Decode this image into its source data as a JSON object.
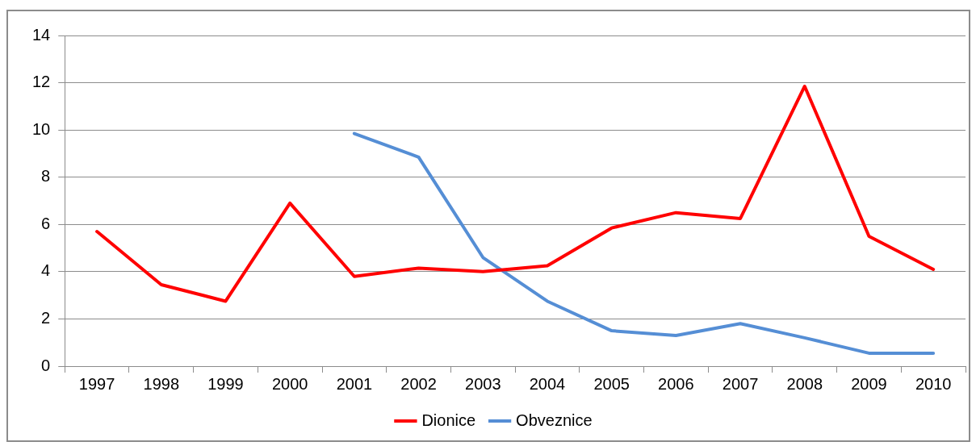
{
  "chart_data": {
    "type": "line",
    "categories": [
      "1997",
      "1998",
      "1999",
      "2000",
      "2001",
      "2002",
      "2003",
      "2004",
      "2005",
      "2006",
      "2007",
      "2008",
      "2009",
      "2010"
    ],
    "series": [
      {
        "name": "Dionice",
        "color": "#ff0000",
        "values": [
          5.7,
          3.45,
          2.75,
          6.9,
          3.8,
          4.15,
          4.0,
          4.25,
          5.85,
          6.5,
          6.25,
          11.85,
          5.5,
          4.1
        ]
      },
      {
        "name": "Obveznice",
        "color": "#558ed5",
        "values": [
          null,
          null,
          null,
          null,
          9.85,
          8.85,
          4.6,
          2.75,
          1.5,
          1.3,
          1.8,
          1.2,
          0.55,
          0.55
        ]
      }
    ],
    "ylim": [
      0,
      14
    ],
    "yticks": [
      0,
      2,
      4,
      6,
      8,
      10,
      12,
      14
    ],
    "grid": "y",
    "legend": "bottom",
    "marker": "none",
    "line_style": "solid"
  }
}
